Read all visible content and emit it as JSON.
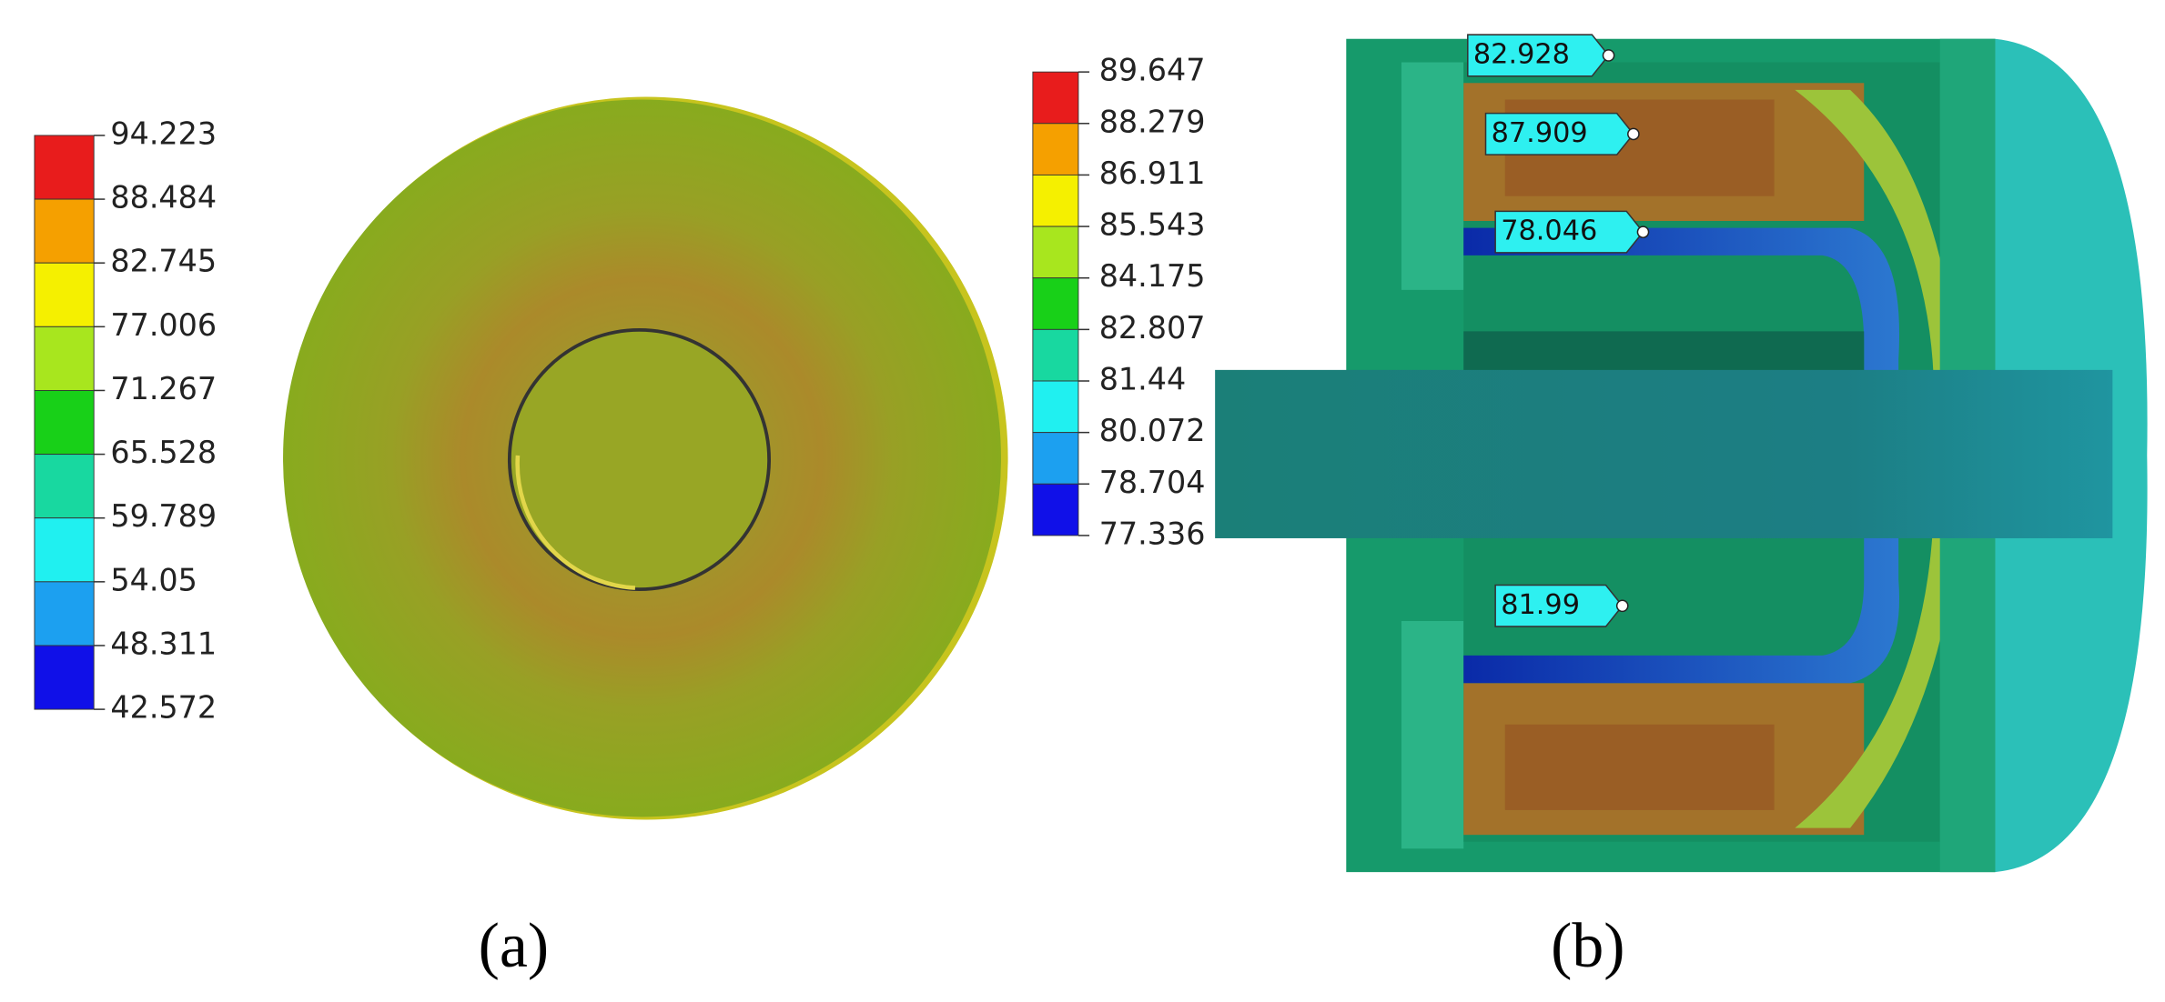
{
  "panel_a": {
    "legend": [
      "94.223",
      "88.484",
      "82.745",
      "77.006",
      "71.267",
      "65.528",
      "59.789",
      "54.05",
      "48.311",
      "42.572"
    ],
    "caption": "(a)"
  },
  "panel_b": {
    "legend": [
      "89.647",
      "88.279",
      "86.911",
      "85.543",
      "84.175",
      "82.807",
      "81.44",
      "80.072",
      "78.704",
      "77.336"
    ],
    "probes": [
      "82.928",
      "87.909",
      "78.046",
      "81.99"
    ],
    "caption": "(b)"
  }
}
